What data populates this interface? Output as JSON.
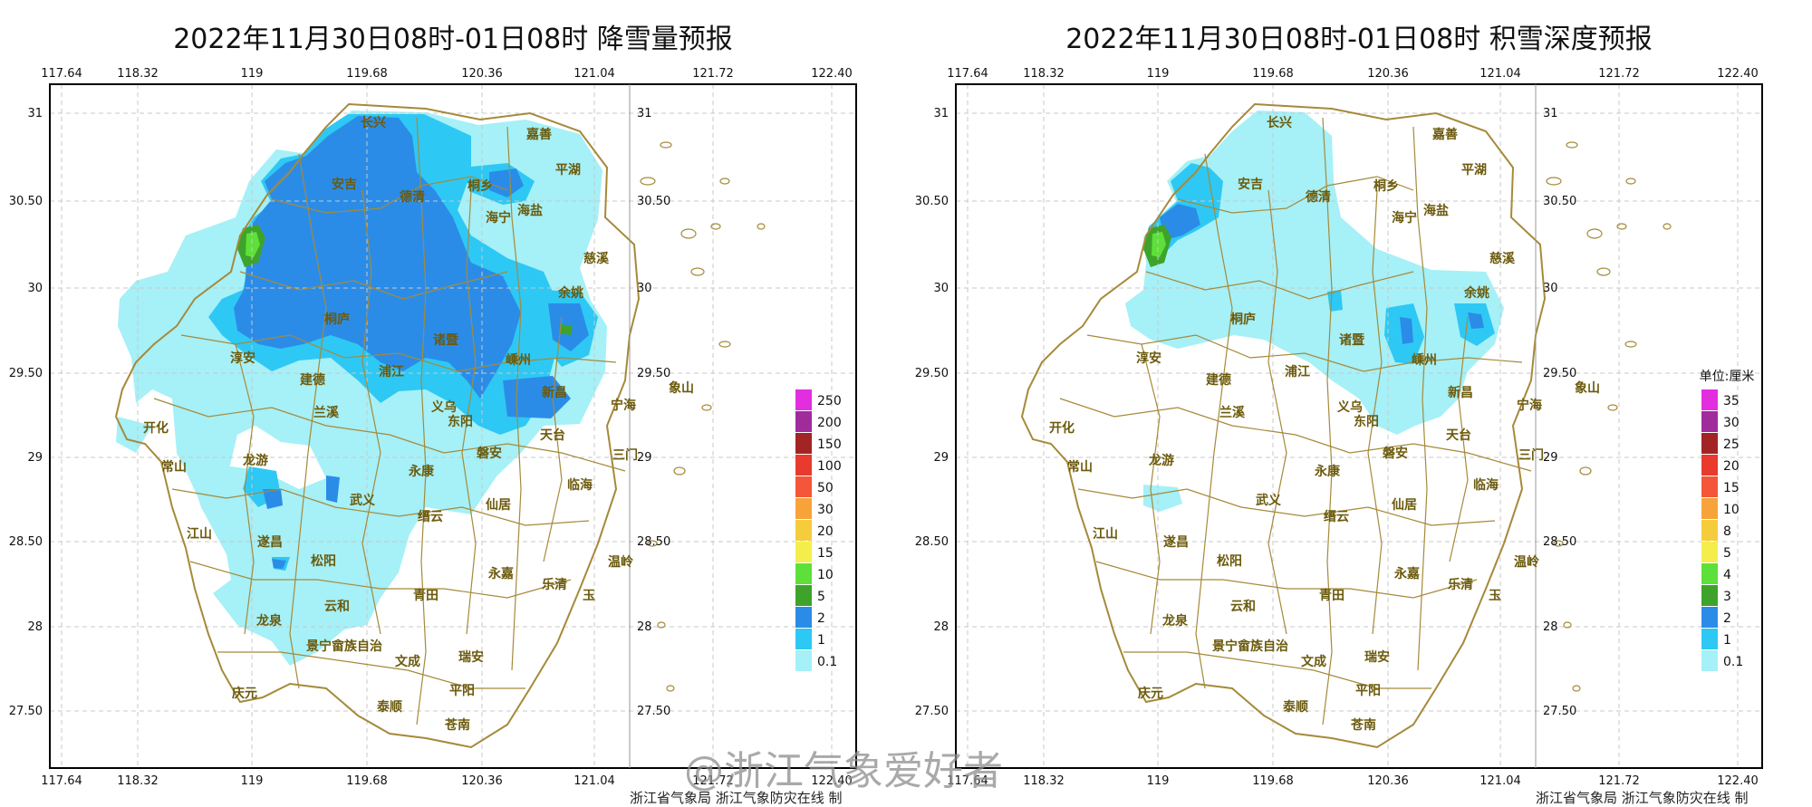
{
  "panels": [
    {
      "title": "2022年11月30日08时-01日08时 降雪量预报",
      "credit": "浙江省气象局  浙江气象防灾在线 制",
      "legend": {
        "unit": "",
        "levels": [
          {
            "label": "250",
            "color": "#e32ee0"
          },
          {
            "label": "200",
            "color": "#a02c9c"
          },
          {
            "label": "150",
            "color": "#a32424"
          },
          {
            "label": "100",
            "color": "#e83b2e"
          },
          {
            "label": "50",
            "color": "#f4563a"
          },
          {
            "label": "30",
            "color": "#f7a33a"
          },
          {
            "label": "20",
            "color": "#f5cd3c"
          },
          {
            "label": "15",
            "color": "#f4ee4c"
          },
          {
            "label": "10",
            "color": "#5ee03a"
          },
          {
            "label": "5",
            "color": "#3ea32a"
          },
          {
            "label": "2",
            "color": "#2b8ce8"
          },
          {
            "label": "1",
            "color": "#2ec8f4"
          },
          {
            "label": "0.1",
            "color": "#a6f0f7"
          }
        ]
      }
    },
    {
      "title": "2022年11月30日08时-01日08时 积雪深度预报",
      "credit": "浙江省气象局  浙江气象防灾在线 制",
      "legend": {
        "unit": "单位:厘米",
        "levels": [
          {
            "label": "35",
            "color": "#e32ee0"
          },
          {
            "label": "30",
            "color": "#a02c9c"
          },
          {
            "label": "25",
            "color": "#a32424"
          },
          {
            "label": "20",
            "color": "#e83b2e"
          },
          {
            "label": "15",
            "color": "#f4563a"
          },
          {
            "label": "10",
            "color": "#f7a33a"
          },
          {
            "label": "8",
            "color": "#f5cd3c"
          },
          {
            "label": "5",
            "color": "#f4ee4c"
          },
          {
            "label": "4",
            "color": "#5ee03a"
          },
          {
            "label": "3",
            "color": "#3ea32a"
          },
          {
            "label": "2",
            "color": "#2b8ce8"
          },
          {
            "label": "1",
            "color": "#2ec8f4"
          },
          {
            "label": "0.1",
            "color": "#a6f0f7"
          }
        ]
      }
    }
  ],
  "lon_ticks": [
    "117.64",
    "118.32",
    "119",
    "119.68",
    "120.36",
    "121.04",
    "121.72",
    "122.40"
  ],
  "lat_ticks": [
    "31",
    "30.50",
    "30",
    "29.50",
    "29",
    "28.50",
    "28",
    "27.50"
  ],
  "cities": [
    "长兴",
    "嘉善",
    "平湖",
    "桐乡",
    "安吉",
    "德清",
    "海宁",
    "海盐",
    "慈溪",
    "余姚",
    "桐庐",
    "诸暨",
    "嵊州",
    "淳安",
    "建德",
    "浦江",
    "新昌",
    "宁海",
    "象山",
    "兰溪",
    "义乌",
    "开化",
    "东阳",
    "天台",
    "三门",
    "龙游",
    "常山",
    "永康",
    "磐安",
    "武义",
    "临海",
    "仙居",
    "江山",
    "缙云",
    "遂昌",
    "温岭",
    "松阳",
    "永嘉",
    "乐清",
    "玉",
    "云和",
    "青田",
    "龙泉",
    "瑞安",
    "文成",
    "景宁畲族自治",
    "平阳",
    "庆元",
    "泰顺",
    "苍南"
  ],
  "watermark": "@浙江气象爱好者",
  "colors": {
    "frame": "#000000",
    "boundary": "#a58a3a",
    "grid": "#c8c8c8",
    "city_label": "#6b5a0c"
  }
}
